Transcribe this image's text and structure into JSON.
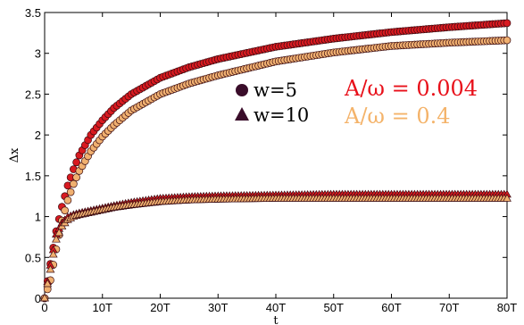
{
  "chart_data": {
    "type": "scatter",
    "title": "",
    "xlabel": "t",
    "ylabel": "Δx",
    "xlim": [
      0,
      80
    ],
    "ylim": [
      0,
      3.5
    ],
    "grid": false,
    "x_ticks": [
      "0",
      "10T",
      "20T",
      "30T",
      "40T",
      "50T",
      "60T",
      "70T",
      "80T"
    ],
    "y_ticks": [
      "0",
      "0.5",
      "1",
      "1.5",
      "2",
      "2.5",
      "3",
      "3.5"
    ],
    "legend": {
      "placement": "center",
      "entries": [
        {
          "marker": "circle",
          "label": "w=5"
        },
        {
          "marker": "triangle",
          "label": "w=10"
        }
      ]
    },
    "annotations": [
      {
        "text": "A/ω = 0.004",
        "color": "#e8101a"
      },
      {
        "text": "A/ω = 0.4",
        "color": "#f4b36a"
      }
    ],
    "colors": {
      "red": "#d81a20",
      "orange": "#f0b070",
      "edge": "#3a0a10"
    },
    "series": [
      {
        "marker": "circle",
        "color_key": "red",
        "x": [
          0,
          1,
          2,
          3,
          4,
          5,
          6,
          8,
          10,
          12,
          15,
          20,
          25,
          30,
          40,
          50,
          60,
          70,
          80
        ],
        "y": [
          0,
          0.42,
          0.82,
          1.12,
          1.38,
          1.58,
          1.75,
          2.0,
          2.18,
          2.33,
          2.5,
          2.7,
          2.83,
          2.93,
          3.08,
          3.18,
          3.26,
          3.32,
          3.37
        ]
      },
      {
        "marker": "circle",
        "color_key": "orange",
        "x": [
          0,
          1,
          2,
          3,
          4,
          5,
          6,
          8,
          10,
          12,
          15,
          20,
          25,
          30,
          40,
          50,
          60,
          70,
          80
        ],
        "y": [
          0,
          0.22,
          0.6,
          0.95,
          1.2,
          1.4,
          1.56,
          1.8,
          1.98,
          2.12,
          2.3,
          2.5,
          2.63,
          2.73,
          2.9,
          3.01,
          3.09,
          3.13,
          3.16
        ]
      },
      {
        "marker": "triangle",
        "color_key": "red",
        "x": [
          0,
          1,
          2,
          3,
          4,
          5,
          6,
          8,
          10,
          12,
          15,
          20,
          25,
          30,
          40,
          50,
          60,
          70,
          80
        ],
        "y": [
          0,
          0.4,
          0.78,
          0.92,
          0.99,
          1.02,
          1.04,
          1.07,
          1.1,
          1.13,
          1.17,
          1.22,
          1.24,
          1.25,
          1.26,
          1.27,
          1.27,
          1.27,
          1.27
        ]
      },
      {
        "marker": "triangle",
        "color_key": "orange",
        "x": [
          0,
          1,
          2,
          3,
          4,
          5,
          6,
          8,
          10,
          12,
          15,
          20,
          25,
          30,
          40,
          50,
          60,
          70,
          80
        ],
        "y": [
          0,
          0.35,
          0.72,
          0.88,
          0.96,
          1.0,
          1.02,
          1.05,
          1.08,
          1.11,
          1.14,
          1.18,
          1.2,
          1.21,
          1.22,
          1.22,
          1.22,
          1.22,
          1.22
        ]
      }
    ]
  }
}
